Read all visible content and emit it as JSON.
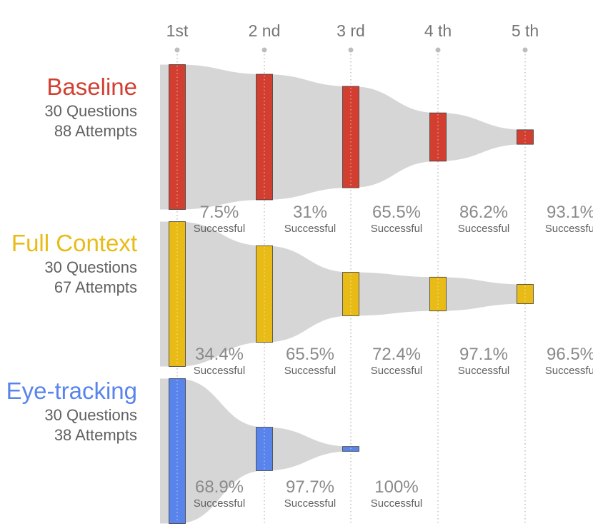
{
  "chart_data": {
    "type": "sankey",
    "attempts": [
      "1st",
      "2 nd",
      "3 rd",
      "4 th",
      "5 th"
    ],
    "success_label": "Successful",
    "groups": [
      {
        "name": "Baseline",
        "color": "#D23F31",
        "questions": "30 Questions",
        "attempts": "88 Attempts",
        "remaining_questions": [
          30,
          26,
          21,
          10,
          3
        ],
        "success_rates": [
          "7.5%",
          "31%",
          "65.5%",
          "86.2%",
          "93.1%"
        ],
        "highlight_last": true
      },
      {
        "name": "Full Context",
        "color": "#E9BB16",
        "questions": "30 Questions",
        "attempts": "67 Attempts",
        "remaining_questions": [
          30,
          20,
          9,
          7,
          4
        ],
        "success_rates": [
          "34.4%",
          "65.5%",
          "72.4%",
          "97.1%",
          "96.5%"
        ],
        "highlight_last": true
      },
      {
        "name": "Eye-tracking",
        "color": "#5884EC",
        "questions": "30 Questions",
        "attempts": "38 Attempts",
        "remaining_questions": [
          30,
          9,
          1
        ],
        "success_rates": [
          "68.9%",
          "97.7%",
          "100%"
        ],
        "highlight_last": true
      }
    ]
  }
}
